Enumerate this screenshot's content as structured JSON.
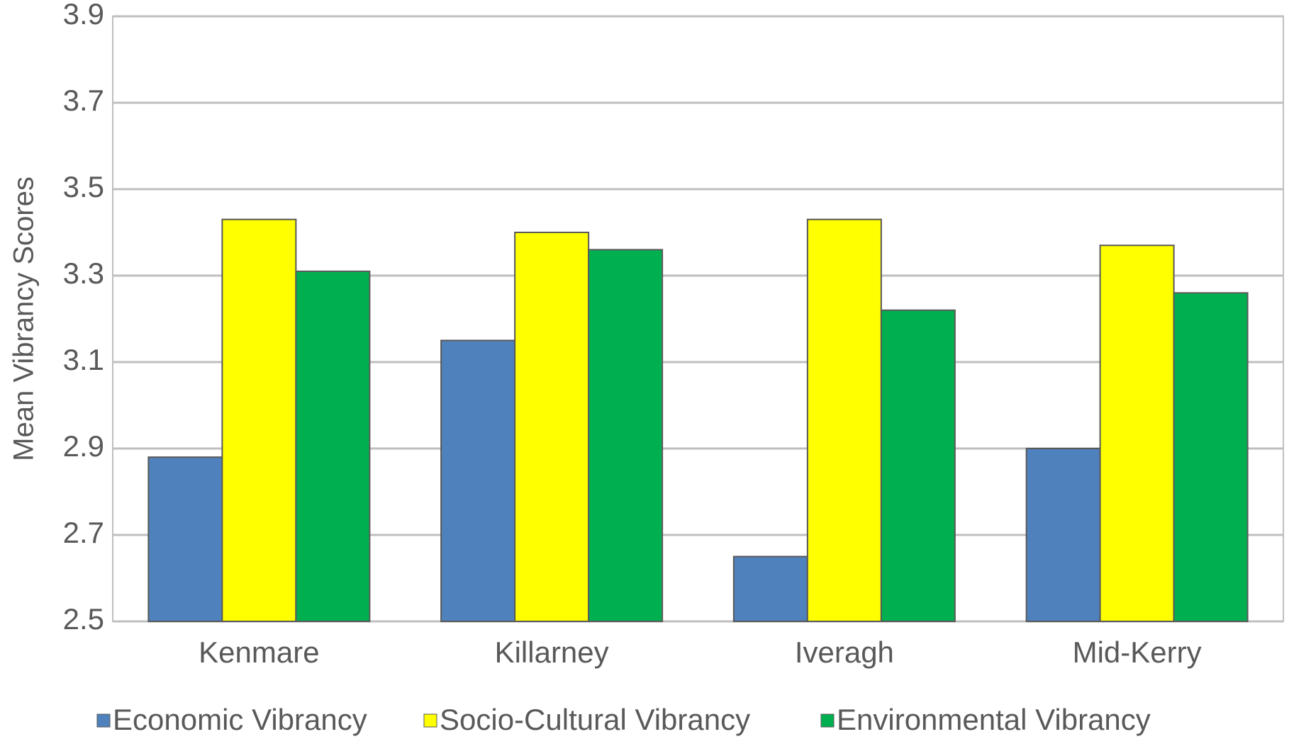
{
  "chart_data": {
    "type": "bar",
    "y_label": "Mean Vibrancy Scores",
    "categories": [
      "Kenmare",
      "Killarney",
      "Iveragh",
      "Mid-Kerry"
    ],
    "series": [
      {
        "name": "Economic Vibrancy",
        "color": "#4f81bd",
        "values": [
          2.88,
          3.15,
          2.65,
          2.9
        ]
      },
      {
        "name": "Socio-Cultural Vibrancy",
        "color": "#ffff00",
        "values": [
          3.43,
          3.4,
          3.43,
          3.37
        ]
      },
      {
        "name": "Environmental Vibrancy",
        "color": "#00b050",
        "values": [
          3.31,
          3.36,
          3.22,
          3.26
        ]
      }
    ],
    "ylim": [
      2.5,
      3.9
    ],
    "yticks": [
      2.5,
      2.7,
      2.9,
      3.1,
      3.3,
      3.5,
      3.7,
      3.9
    ],
    "grid": true,
    "legend": "bottom"
  }
}
